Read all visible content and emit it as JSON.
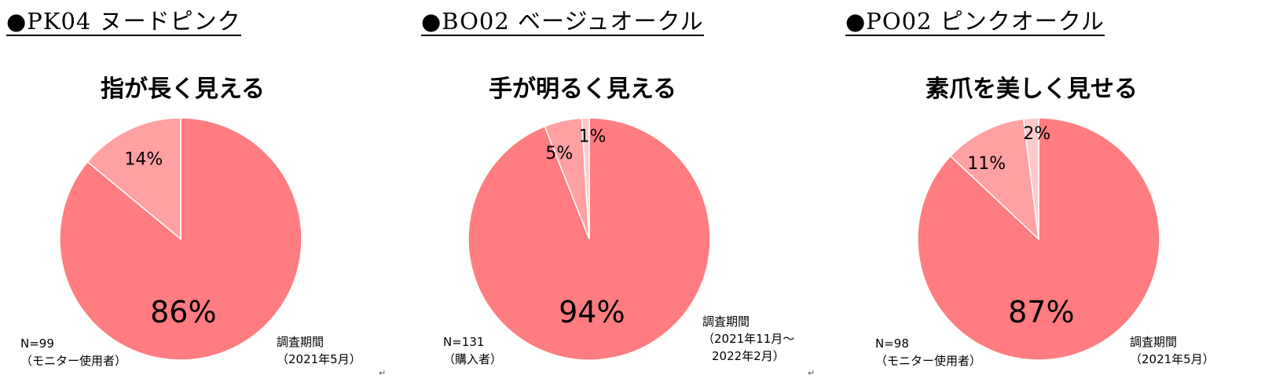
{
  "colors": {
    "main": "#ff7c80",
    "second": "#ffa0a3",
    "third": "#ffc9cb"
  },
  "return_mark": "↵",
  "chart_data": [
    {
      "type": "pie",
      "panel_title": "●PK04 ヌードピンク",
      "title": "指が長く見える",
      "slices": [
        {
          "label": "86%",
          "value": 86,
          "color": "#ff7c80"
        },
        {
          "label": "14%",
          "value": 14,
          "color": "#ffa0a3"
        }
      ],
      "sample_note": [
        "N=99",
        "（モニター使用者）"
      ],
      "period_note": [
        "調査期間",
        "（2021年5月）"
      ]
    },
    {
      "type": "pie",
      "panel_title": "●BO02 ベージュオークル",
      "title": "手が明るく見える",
      "slices": [
        {
          "label": "94%",
          "value": 94,
          "color": "#ff7c80"
        },
        {
          "label": "5%",
          "value": 5,
          "color": "#ffa0a3"
        },
        {
          "label": "1%",
          "value": 1,
          "color": "#ffc9cb"
        }
      ],
      "sample_note": [
        "N=131",
        "（購入者）"
      ],
      "period_note": [
        "調査期間",
        "（2021年11月〜",
        "2022年2月）"
      ]
    },
    {
      "type": "pie",
      "panel_title": "●PO02 ピンクオークル",
      "title": "素爪を美しく見せる",
      "slices": [
        {
          "label": "87%",
          "value": 87,
          "color": "#ff7c80"
        },
        {
          "label": "11%",
          "value": 11,
          "color": "#ffa0a3"
        },
        {
          "label": "2%",
          "value": 2,
          "color": "#ffc9cb"
        }
      ],
      "sample_note": [
        "N=98",
        "（モニター使用者）"
      ],
      "period_note": [
        "調査期間",
        "（2021年5月）"
      ]
    }
  ]
}
